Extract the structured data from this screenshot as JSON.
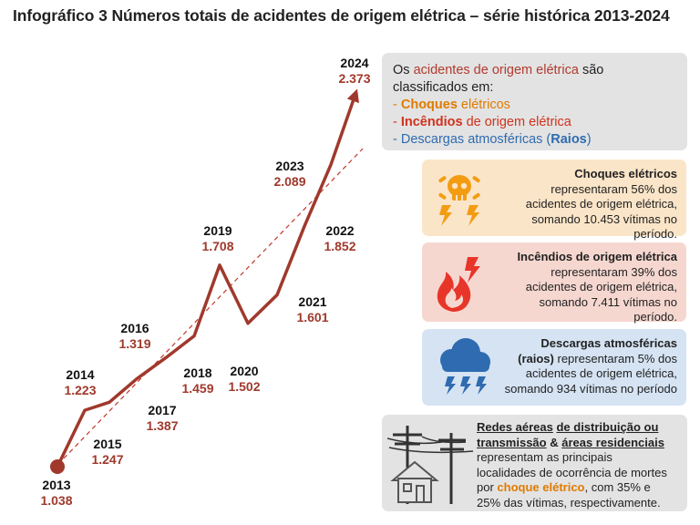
{
  "title": "Infográfico 3 Números totais de acidentes de origem elétrica – série histórica 2013-2024",
  "chart_data": {
    "type": "line",
    "title": "Números totais de acidentes de origem elétrica",
    "x": [
      "2013",
      "2014",
      "2015",
      "2016",
      "2017",
      "2018",
      "2019",
      "2020",
      "2021",
      "2022",
      "2023",
      "2024"
    ],
    "values": [
      1038,
      1223,
      1247,
      1319,
      1387,
      1459,
      1708,
      1502,
      1601,
      1852,
      2089,
      2373
    ],
    "value_labels": [
      "1.038",
      "1.223",
      "1.247",
      "1.319",
      "1.387",
      "1.459",
      "1.708",
      "1.502",
      "1.601",
      "1.852",
      "2.089",
      "2.373"
    ],
    "trendline": "linear (dashed)",
    "line_color": "#a0392c"
  },
  "intro": {
    "line1_a": "Os ",
    "line1_b": "acidentes de origem elétrica",
    "line1_c": " são",
    "line2": "classificados em:",
    "item1_a": "- ",
    "item1_b": "Choques",
    "item1_c": " elétricos",
    "item2_a": "- ",
    "item2_b": "Incêndios",
    "item2_c": " de origem elétrica",
    "item3_a": "- Descargas atmosféricas (",
    "item3_b": "Raios",
    "item3_c": ")"
  },
  "cards": {
    "choques": {
      "title": "Choques elétricos",
      "line1": "representaram  56% dos",
      "line2": "acidentes de origem elétrica,",
      "line3": "somando 10.453 vítimas no",
      "line4": "período."
    },
    "incendios": {
      "title": "Incêndios de origem elétrica",
      "line1": "representaram 39% dos",
      "line2": "acidentes de origem elétrica,",
      "line3": "somando 7.411 vítimas no",
      "line4": "período."
    },
    "raios": {
      "title": "Descargas atmosféricas",
      "title2": "(raios)",
      "line1": " representaram 5%  dos",
      "line2": "acidentes de origem elétrica,",
      "line3": "somando 934 vítimas no período"
    }
  },
  "redes": {
    "u1": "Redes aéreas",
    "u2": "de distribuição ou",
    "u3": "transmissão",
    "amp": " & ",
    "u4": "áreas residenciais",
    "t1": "representam as principais",
    "t2": "localidades de ocorrência de mortes",
    "t3a": "por ",
    "t3b": "choque elétrico",
    "t3c": ", com 35% e",
    "t4": "25% das vítimas, respectivamente."
  }
}
